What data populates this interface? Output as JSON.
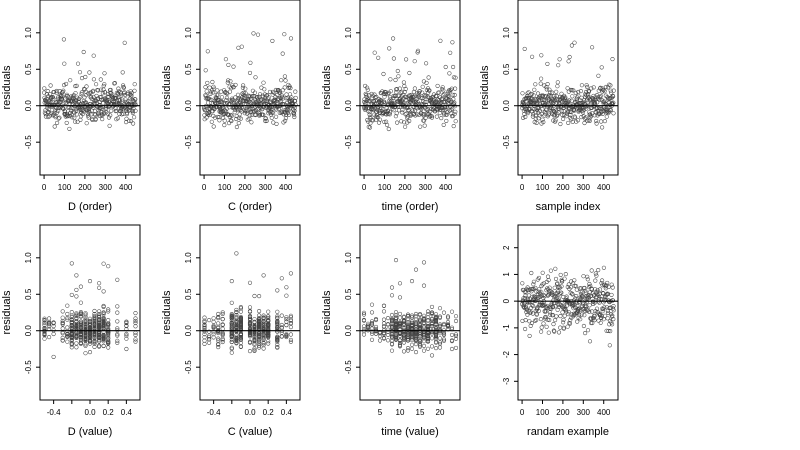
{
  "chart_data": [
    {
      "type": "scatter",
      "xlabel": "D (order)",
      "ylabel": "residuals",
      "xticks": [
        "0",
        "100",
        "200",
        "300",
        "400"
      ],
      "xtick_values": [
        0,
        100,
        200,
        300,
        400
      ],
      "yticks": [
        "-0.5",
        "0.0",
        "0.5",
        "1.0"
      ],
      "ytick_values": [
        -0.5,
        0,
        0.5,
        1.0
      ],
      "xlim": [
        -20,
        470
      ],
      "ylim": [
        -0.95,
        1.45
      ],
      "hline": 0,
      "n_points": 450,
      "pattern": "order"
    },
    {
      "type": "scatter",
      "xlabel": "C (order)",
      "ylabel": "residuals",
      "xticks": [
        "0",
        "100",
        "200",
        "300",
        "400"
      ],
      "xtick_values": [
        0,
        100,
        200,
        300,
        400
      ],
      "yticks": [
        "-0.5",
        "0.0",
        "0.5",
        "1.0"
      ],
      "ytick_values": [
        -0.5,
        0,
        0.5,
        1.0
      ],
      "xlim": [
        -20,
        470
      ],
      "ylim": [
        -0.95,
        1.45
      ],
      "hline": 0,
      "n_points": 450,
      "pattern": "order"
    },
    {
      "type": "scatter",
      "xlabel": "time (order)",
      "ylabel": "residuals",
      "xticks": [
        "0",
        "100",
        "200",
        "300",
        "400"
      ],
      "xtick_values": [
        0,
        100,
        200,
        300,
        400
      ],
      "yticks": [
        "-0.5",
        "0.0",
        "0.5",
        "1.0"
      ],
      "ytick_values": [
        -0.5,
        0,
        0.5,
        1.0
      ],
      "xlim": [
        -20,
        470
      ],
      "ylim": [
        -0.95,
        1.45
      ],
      "hline": 0,
      "n_points": 450,
      "pattern": "order"
    },
    {
      "type": "scatter",
      "xlabel": "sample index",
      "ylabel": "residuals",
      "xticks": [
        "0",
        "100",
        "200",
        "300",
        "400"
      ],
      "xtick_values": [
        0,
        100,
        200,
        300,
        400
      ],
      "yticks": [
        "-0.5",
        "0.0",
        "0.5",
        "1.0"
      ],
      "ytick_values": [
        -0.5,
        0,
        0.5,
        1.0
      ],
      "xlim": [
        -20,
        470
      ],
      "ylim": [
        -0.95,
        1.45
      ],
      "hline": 0,
      "n_points": 450,
      "pattern": "order"
    },
    {
      "type": "scatter",
      "xlabel": "D (value)",
      "ylabel": "residuals",
      "xticks": [
        "-0.4",
        "0.0",
        "0.2",
        "0.4"
      ],
      "xtick_values": [
        -0.4,
        0,
        0.2,
        0.4
      ],
      "minor_xtick_values": [
        -0.2
      ],
      "yticks": [
        "-0.5",
        "0.0",
        "0.5",
        "1.0"
      ],
      "ytick_values": [
        -0.5,
        0,
        0.5,
        1.0
      ],
      "xlim": [
        -0.55,
        0.55
      ],
      "ylim": [
        -0.95,
        1.45
      ],
      "hline": 0,
      "n_points": 450,
      "pattern": "value",
      "x_levels": [
        -0.5,
        -0.45,
        -0.4,
        -0.3,
        -0.25,
        -0.2,
        -0.15,
        -0.1,
        -0.05,
        0,
        0.05,
        0.1,
        0.15,
        0.2,
        0.3,
        0.4,
        0.5
      ]
    },
    {
      "type": "scatter",
      "xlabel": "C (value)",
      "ylabel": "residuals",
      "xticks": [
        "-0.4",
        "0.0",
        "0.2",
        "0.4"
      ],
      "xtick_values": [
        -0.4,
        0,
        0.2,
        0.4
      ],
      "minor_xtick_values": [
        -0.2
      ],
      "yticks": [
        "-0.5",
        "0.0",
        "0.5",
        "1.0"
      ],
      "ytick_values": [
        -0.5,
        0,
        0.5,
        1.0
      ],
      "xlim": [
        -0.55,
        0.55
      ],
      "ylim": [
        -0.95,
        1.45
      ],
      "hline": 0,
      "n_points": 450,
      "pattern": "value",
      "x_levels": [
        -0.5,
        -0.45,
        -0.4,
        -0.35,
        -0.3,
        -0.2,
        -0.15,
        -0.1,
        0,
        0.05,
        0.1,
        0.15,
        0.2,
        0.3,
        0.35,
        0.4,
        0.45
      ]
    },
    {
      "type": "scatter",
      "xlabel": "time (value)",
      "ylabel": "residuals",
      "xticks": [
        "5",
        "10",
        "15",
        "20"
      ],
      "xtick_values": [
        5,
        10,
        15,
        20
      ],
      "yticks": [
        "-0.5",
        "0.0",
        "0.5",
        "1.0"
      ],
      "ytick_values": [
        -0.5,
        0,
        0.5,
        1.0
      ],
      "xlim": [
        0,
        25
      ],
      "ylim": [
        -0.95,
        1.45
      ],
      "hline": 0,
      "n_points": 450,
      "pattern": "value",
      "x_levels": [
        1,
        2,
        3,
        4,
        5,
        6,
        7,
        8,
        9,
        10,
        11,
        12,
        13,
        14,
        15,
        16,
        17,
        18,
        19,
        20,
        21,
        22,
        23,
        24
      ]
    },
    {
      "type": "scatter",
      "xlabel": "randam example",
      "ylabel": "residuals",
      "xticks": [
        "0",
        "100",
        "200",
        "300",
        "400"
      ],
      "xtick_values": [
        0,
        100,
        200,
        300,
        400
      ],
      "yticks": [
        "-3",
        "-2",
        "-1",
        "0",
        "1",
        "2"
      ],
      "ytick_values": [
        -3,
        -2,
        -1,
        0,
        1,
        2
      ],
      "xlim": [
        -20,
        470
      ],
      "ylim": [
        -3.7,
        2.85
      ],
      "hline": 0,
      "n_points": 450,
      "pattern": "random"
    }
  ]
}
